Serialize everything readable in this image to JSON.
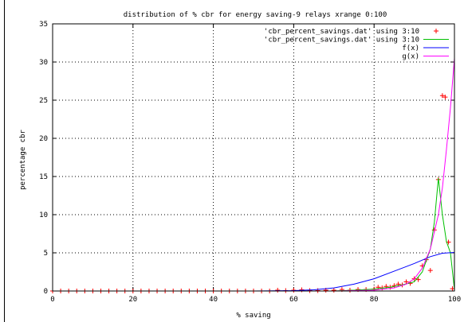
{
  "chart_data": {
    "type": "line",
    "title": "distribution of % cbr for energy saving-9 relays xrange 0:100",
    "xlabel": "% saving",
    "ylabel": "percentage cbr",
    "xlim": [
      0,
      100
    ],
    "ylim": [
      0,
      35
    ],
    "x_ticks": [
      0,
      20,
      40,
      60,
      80,
      100
    ],
    "y_ticks": [
      0,
      5,
      10,
      15,
      20,
      25,
      30,
      35
    ],
    "grid": true,
    "legend_position": "top-right",
    "series": [
      {
        "name": "'cbr_percent_savings.dat' using 3:10",
        "style": "points",
        "marker": "+",
        "color": "#ff0000",
        "points": [
          [
            0,
            0
          ],
          [
            2,
            0
          ],
          [
            4,
            0
          ],
          [
            6,
            0
          ],
          [
            8,
            0
          ],
          [
            10,
            0
          ],
          [
            12,
            0
          ],
          [
            14,
            0
          ],
          [
            16,
            0
          ],
          [
            18,
            0
          ],
          [
            20,
            0
          ],
          [
            22,
            0
          ],
          [
            24,
            0
          ],
          [
            26,
            0
          ],
          [
            28,
            0
          ],
          [
            30,
            0
          ],
          [
            32,
            0
          ],
          [
            34,
            0
          ],
          [
            36,
            0
          ],
          [
            38,
            0
          ],
          [
            40,
            0
          ],
          [
            42,
            0
          ],
          [
            44,
            0
          ],
          [
            46,
            0
          ],
          [
            48,
            0
          ],
          [
            50,
            0
          ],
          [
            52,
            0
          ],
          [
            54,
            0
          ],
          [
            56,
            0.1
          ],
          [
            58,
            0.05
          ],
          [
            60,
            0.1
          ],
          [
            62,
            0.15
          ],
          [
            64,
            0.05
          ],
          [
            66,
            0.05
          ],
          [
            68,
            0.1
          ],
          [
            70,
            0.1
          ],
          [
            72,
            0.2
          ],
          [
            74,
            0.1
          ],
          [
            76,
            0.2
          ],
          [
            78,
            0.2
          ],
          [
            80,
            0.25
          ],
          [
            81,
            0.5
          ],
          [
            82,
            0.4
          ],
          [
            83,
            0.6
          ],
          [
            84,
            0.5
          ],
          [
            85,
            0.7
          ],
          [
            86,
            0.9
          ],
          [
            87,
            0.8
          ],
          [
            88,
            1.2
          ],
          [
            89,
            1.0
          ],
          [
            90,
            1.6
          ],
          [
            91,
            1.5
          ],
          [
            92,
            3.3
          ],
          [
            93,
            4.1
          ],
          [
            94,
            2.7
          ],
          [
            95,
            8.0
          ],
          [
            96,
            14.6
          ],
          [
            97,
            25.6
          ],
          [
            97.7,
            25.4
          ],
          [
            98.5,
            6.4
          ],
          [
            99.5,
            0.3
          ]
        ]
      },
      {
        "name": "'cbr_percent_savings.dat' using 3:10",
        "style": "lines",
        "color": "#00c000",
        "points": [
          [
            0,
            0
          ],
          [
            10,
            0
          ],
          [
            20,
            0
          ],
          [
            30,
            0
          ],
          [
            40,
            0
          ],
          [
            50,
            0
          ],
          [
            60,
            0
          ],
          [
            70,
            0
          ],
          [
            75,
            0.1
          ],
          [
            80,
            0.25
          ],
          [
            84,
            0.5
          ],
          [
            87,
            0.8
          ],
          [
            90,
            1.2
          ],
          [
            92,
            2.5
          ],
          [
            94,
            5.5
          ],
          [
            95,
            9.0
          ],
          [
            96,
            14.8
          ],
          [
            97,
            10.0
          ],
          [
            98,
            6.5
          ],
          [
            99,
            5.0
          ],
          [
            100,
            0.2
          ]
        ]
      },
      {
        "name": "f(x)",
        "style": "lines",
        "color": "#0000ff",
        "points": [
          [
            0,
            0
          ],
          [
            50,
            0
          ],
          [
            60,
            0.05
          ],
          [
            65,
            0.15
          ],
          [
            70,
            0.4
          ],
          [
            75,
            0.9
          ],
          [
            80,
            1.6
          ],
          [
            85,
            2.6
          ],
          [
            90,
            3.6
          ],
          [
            94,
            4.5
          ],
          [
            97,
            4.95
          ],
          [
            100,
            5.05
          ]
        ]
      },
      {
        "name": "g(x)",
        "style": "lines",
        "color": "#ff00ff",
        "points": [
          [
            0,
            0
          ],
          [
            70,
            0
          ],
          [
            80,
            0.1
          ],
          [
            85,
            0.4
          ],
          [
            88,
            0.9
          ],
          [
            90,
            1.6
          ],
          [
            92,
            3.0
          ],
          [
            94,
            5.5
          ],
          [
            96,
            10.0
          ],
          [
            97,
            13.5
          ],
          [
            98,
            18.5
          ],
          [
            99,
            24.0
          ],
          [
            100,
            30.5
          ]
        ]
      }
    ]
  }
}
